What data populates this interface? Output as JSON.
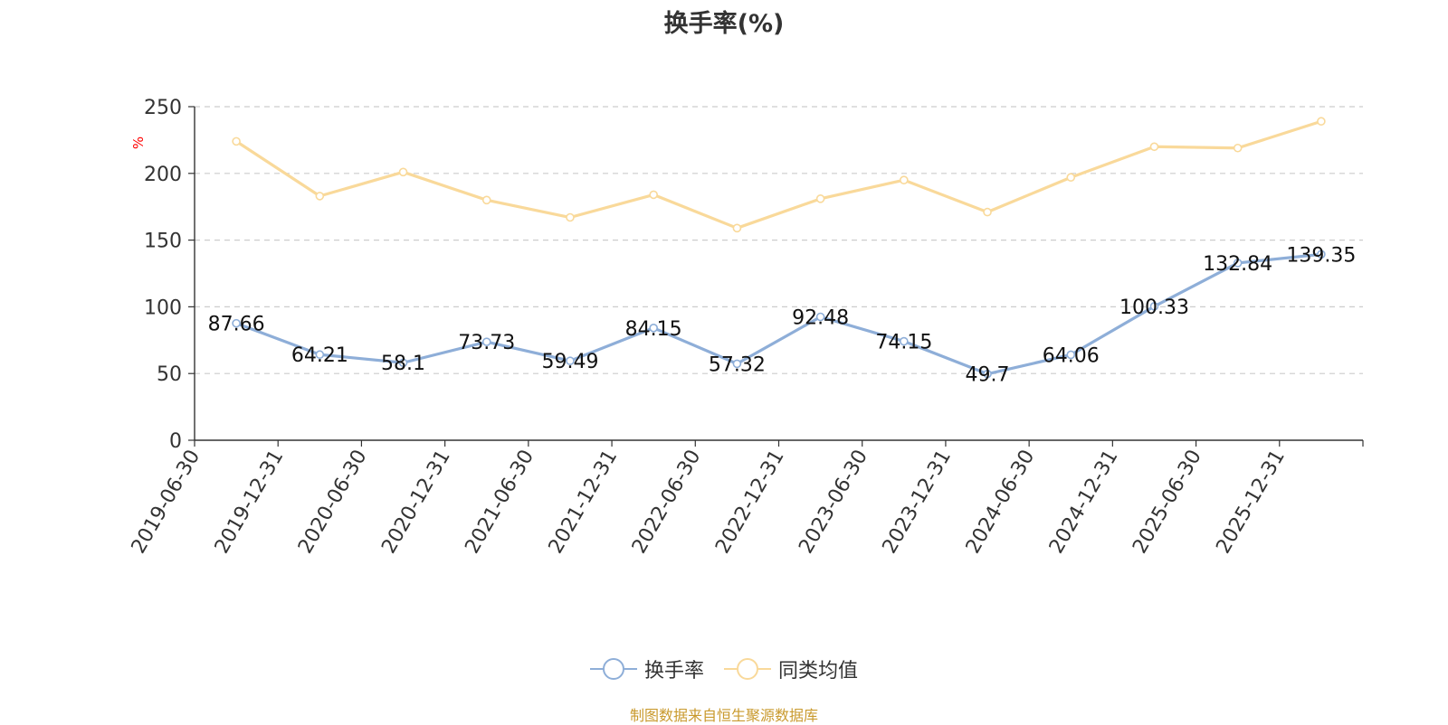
{
  "colors": {
    "series_turnover": "#8eaed8",
    "series_peer": "#f9d99a",
    "axis": "#333333",
    "grid": "#cccccc",
    "y_unit": "#ff0000",
    "source": "#c99a2e"
  },
  "legend": {
    "turnover_label": "换手率",
    "peer_label": "同类均值"
  },
  "source_note": "制图数据来自恒生聚源数据库",
  "chart_data": {
    "type": "line",
    "title": "换手率(%)",
    "ylabel": "%",
    "xlabel": "",
    "ylim": [
      0,
      250
    ],
    "yticks": [
      0,
      50,
      100,
      150,
      200,
      250
    ],
    "grid": true,
    "legend_position": "bottom",
    "categories": [
      "2019-06-30",
      "2019-12-31",
      "2020-06-30",
      "2020-12-31",
      "2021-06-30",
      "2021-12-31",
      "2022-06-30",
      "2022-12-31",
      "2023-06-30",
      "2023-12-31",
      "2024-06-30",
      "2024-12-31",
      "2025-06-30",
      "2025-12-31"
    ],
    "series": [
      {
        "name": "换手率",
        "values": [
          87.66,
          64.21,
          58.1,
          73.73,
          59.49,
          84.15,
          57.32,
          92.48,
          74.15,
          49.7,
          64.06,
          100.33,
          132.84,
          139.35
        ],
        "labels": [
          "87.66",
          "64.21",
          "58.1",
          "73.73",
          "59.49",
          "84.15",
          "57.32",
          "92.48",
          "74.15",
          "49.7",
          "64.06",
          "100.33",
          "132.84",
          "139.35"
        ]
      },
      {
        "name": "同类均值",
        "values": [
          224,
          183,
          201,
          180,
          167,
          184,
          159,
          181,
          195,
          171,
          197,
          220,
          219,
          239
        ]
      }
    ]
  }
}
